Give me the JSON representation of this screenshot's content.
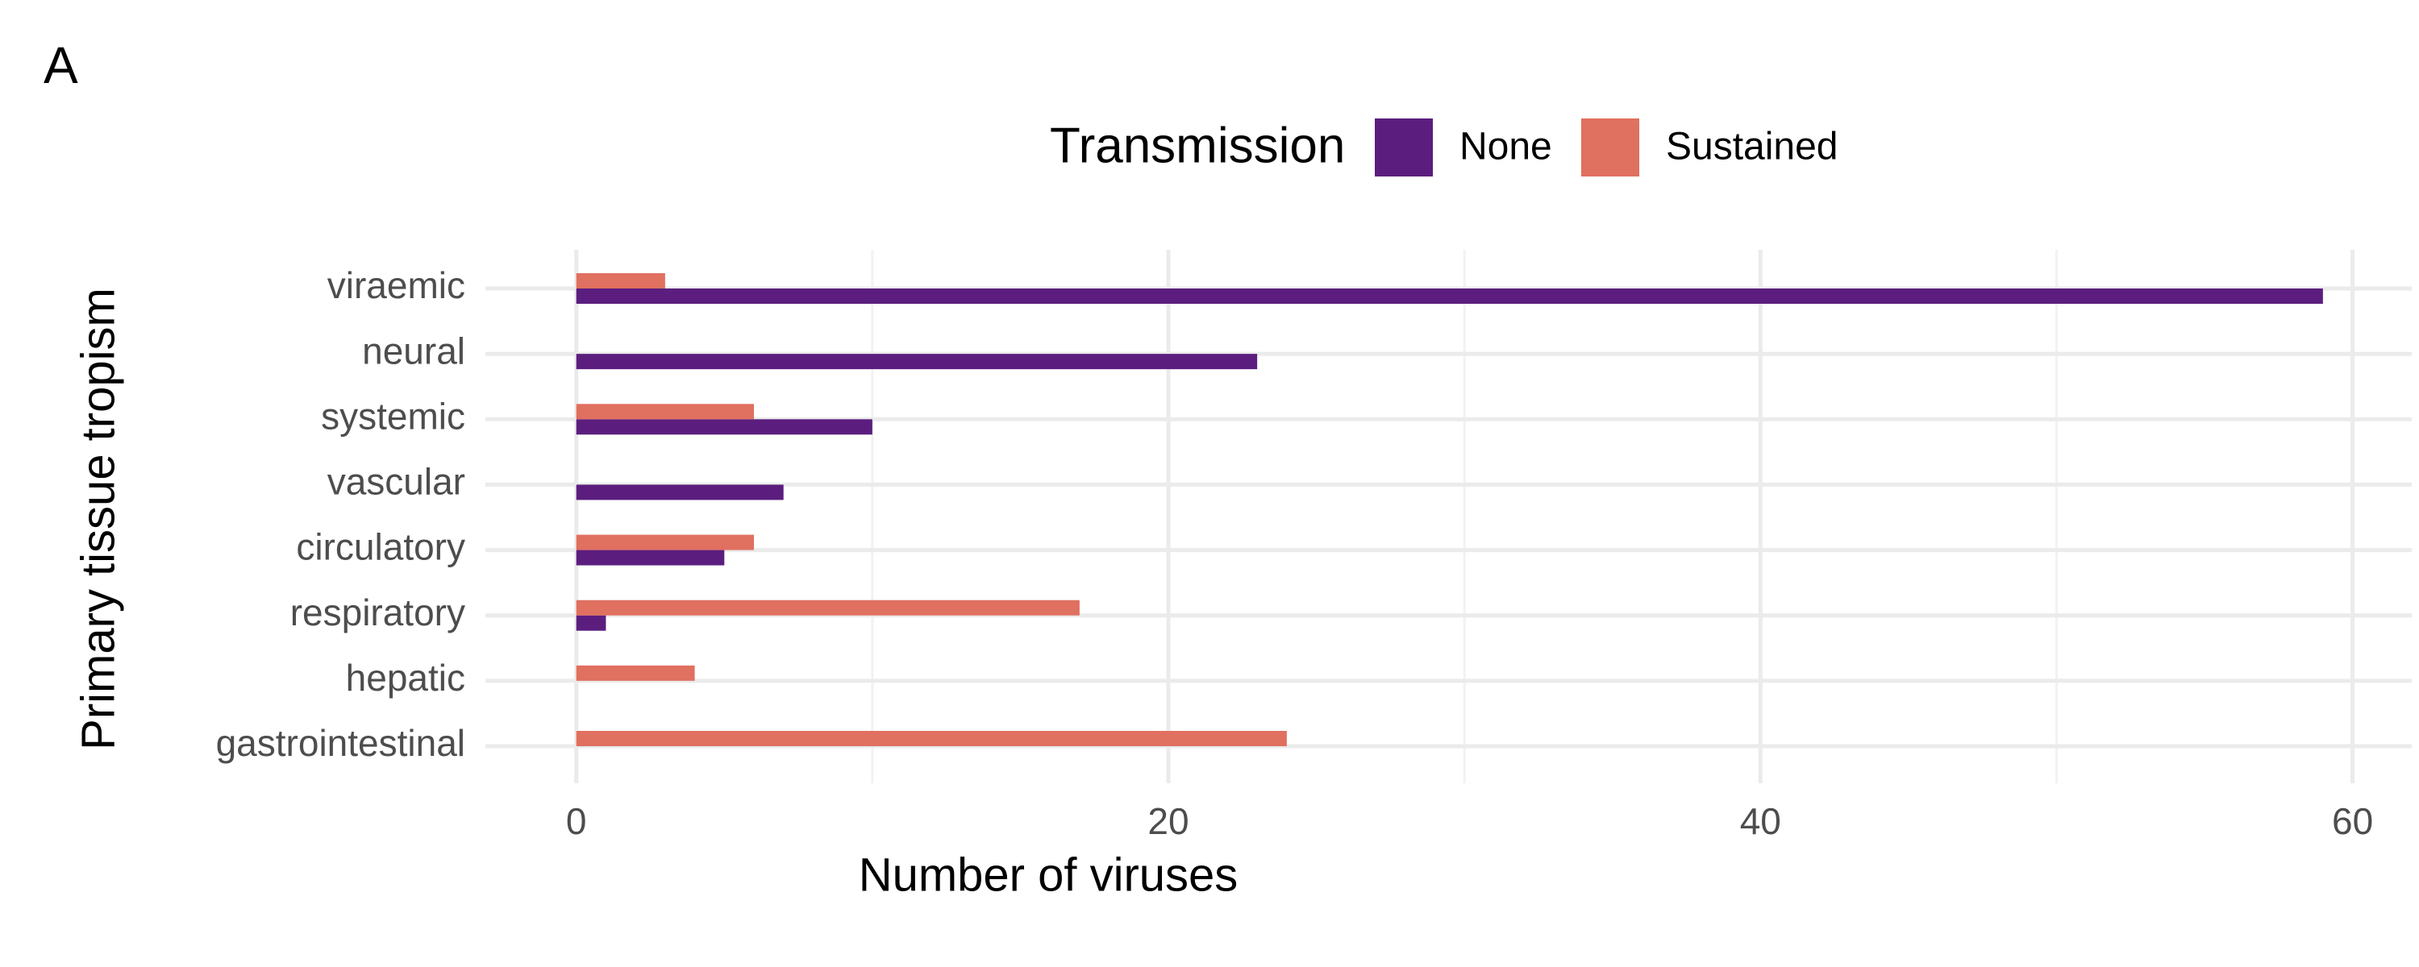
{
  "panel_label": "A",
  "chart_data": {
    "type": "hbar",
    "xlabel": "Number of viruses",
    "ylabel": "Primary tissue tropism",
    "legend_title": "Transmission",
    "legend_position": "top",
    "categories": [
      "viraemic",
      "neural",
      "systemic",
      "vascular",
      "circulatory",
      "respiratory",
      "hepatic",
      "gastrointestinal"
    ],
    "series": [
      {
        "name": "None",
        "color": "#5b1e7e",
        "values": [
          59,
          23,
          10,
          7,
          5,
          1,
          0,
          0
        ]
      },
      {
        "name": "Sustained",
        "color": "#e07060",
        "values": [
          3,
          0,
          6,
          0,
          6,
          17,
          4,
          24
        ]
      }
    ],
    "xlim": [
      -3.07,
      62.0
    ],
    "xticks": [
      0,
      20,
      40,
      60
    ],
    "xminor": [
      10,
      30,
      50
    ],
    "grid": true
  }
}
